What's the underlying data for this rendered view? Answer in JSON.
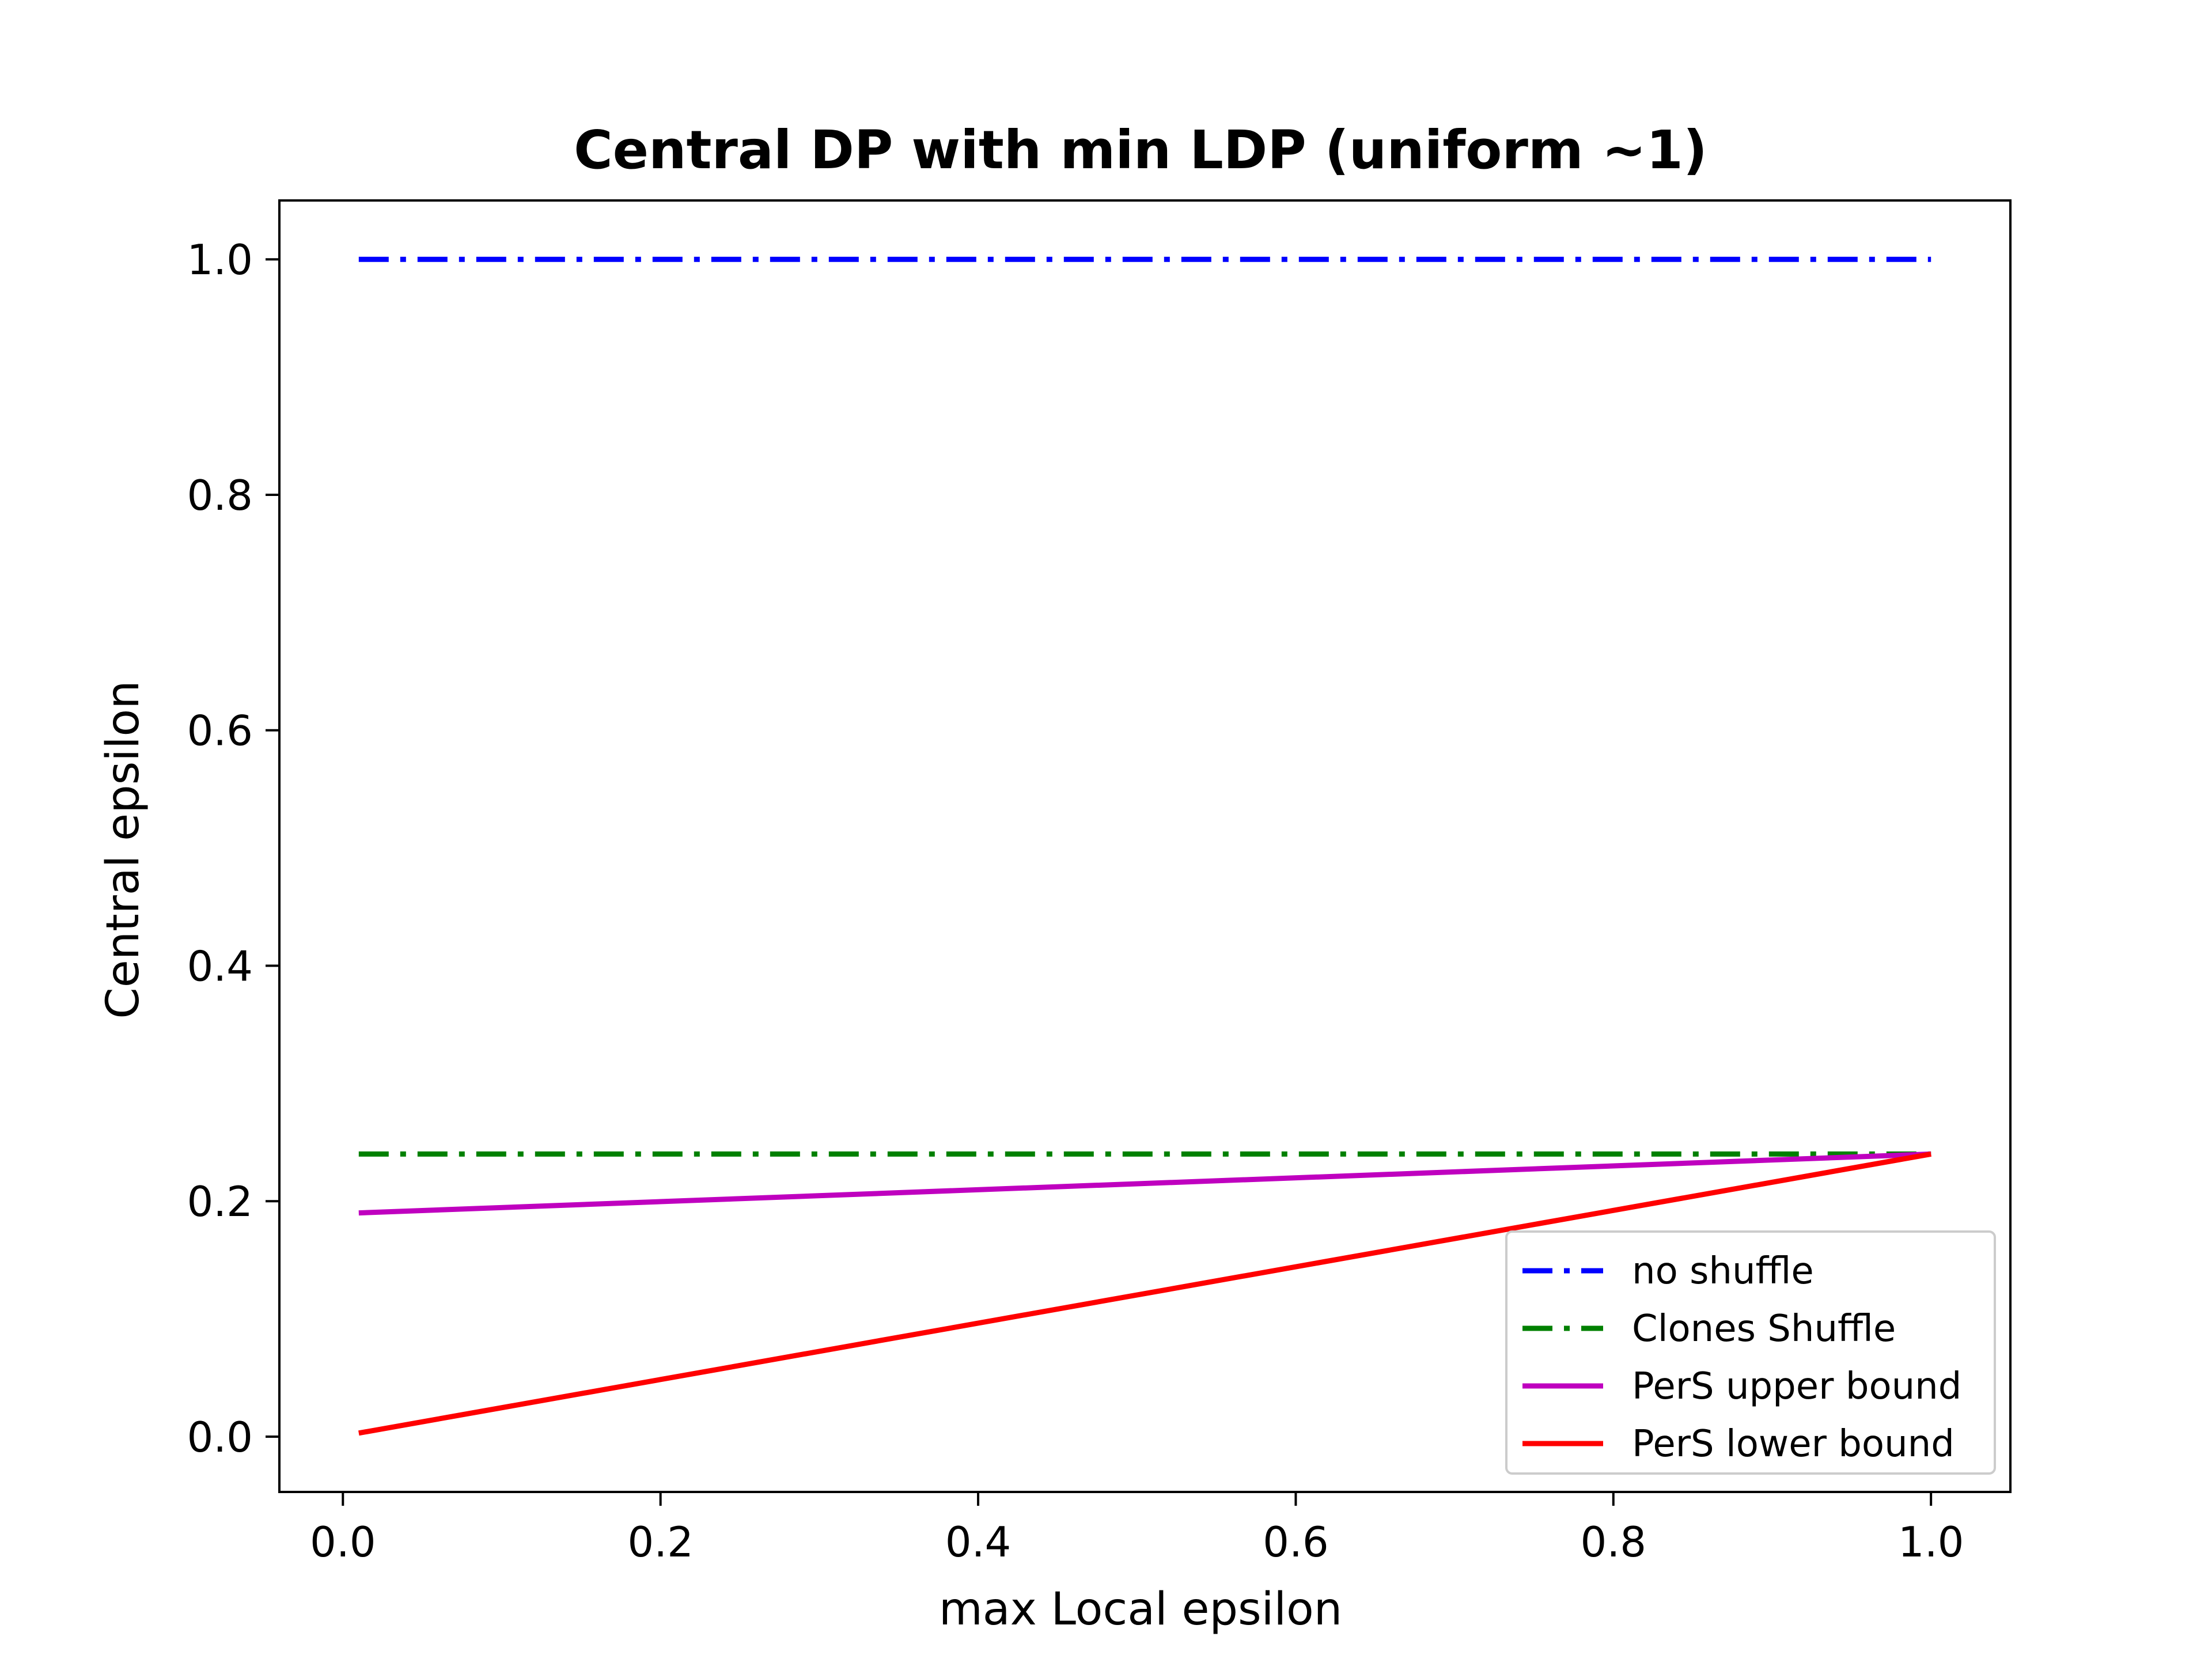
{
  "chart_data": {
    "type": "line",
    "title": "Central DP with min LDP (uniform ~1)",
    "xlabel": "max Local epsilon",
    "ylabel": "Central epsilon",
    "xlim": [
      -0.04,
      1.05
    ],
    "ylim": [
      -0.047,
      1.05
    ],
    "xticks": [
      0.0,
      0.2,
      0.4,
      0.6,
      0.8,
      1.0
    ],
    "xtick_labels": [
      "0.0",
      "0.2",
      "0.4",
      "0.6",
      "0.8",
      "1.0"
    ],
    "yticks": [
      0.0,
      0.2,
      0.4,
      0.6,
      0.8,
      1.0
    ],
    "ytick_labels": [
      "0.0",
      "0.2",
      "0.4",
      "0.6",
      "0.8",
      "1.0"
    ],
    "grid": false,
    "legend_position": "lower-right",
    "series": [
      {
        "name": "no shuffle",
        "color": "#0000ff",
        "style": "dashdot",
        "x": [
          0.01,
          1.0
        ],
        "y": [
          1.0,
          1.0
        ]
      },
      {
        "name": "Clones Shuffle",
        "color": "#008000",
        "style": "dashdot",
        "x": [
          0.01,
          1.0
        ],
        "y": [
          0.24,
          0.24
        ]
      },
      {
        "name": "PerS upper bound",
        "color": "#bf00bf",
        "style": "solid",
        "x": [
          0.01,
          1.0
        ],
        "y": [
          0.19,
          0.24
        ]
      },
      {
        "name": "PerS lower bound",
        "color": "#ff0000",
        "style": "solid",
        "x": [
          0.01,
          1.0
        ],
        "y": [
          0.003,
          0.24
        ]
      }
    ]
  }
}
